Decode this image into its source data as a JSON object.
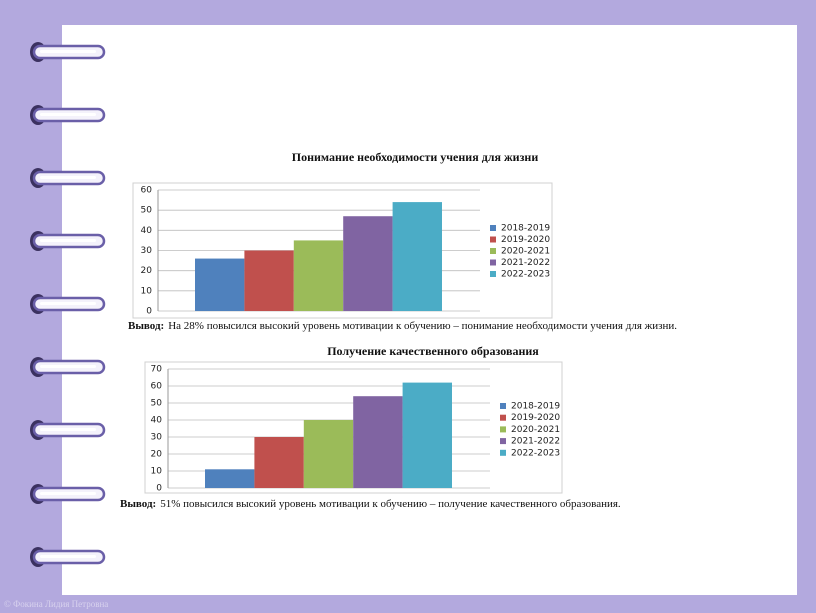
{
  "chart_data": [
    {
      "type": "bar",
      "title": "Понимание необходимости учения для жизни",
      "categories": [
        null
      ],
      "series": [
        {
          "name": "2018-2019",
          "color": "#4f81bd",
          "values": [
            26
          ]
        },
        {
          "name": "2019-2020",
          "color": "#c0504d",
          "values": [
            30
          ]
        },
        {
          "name": "2020-2021",
          "color": "#9bbb59",
          "values": [
            35
          ]
        },
        {
          "name": "2021-2022",
          "color": "#8064a2",
          "values": [
            47
          ]
        },
        {
          "name": "2022-2023",
          "color": "#4bacc6",
          "values": [
            54
          ]
        }
      ],
      "ylim": [
        0,
        60
      ],
      "yticks": [
        0,
        10,
        20,
        30,
        40,
        50,
        60
      ],
      "grid": true,
      "legend": "right",
      "conclusion_label": "Вывод:",
      "conclusion_text": "На 28%  повысился высокий уровень мотивации к обучению – понимание необходимости учения для жизни."
    },
    {
      "type": "bar",
      "title": "Получение качественного образования",
      "categories": [
        null
      ],
      "series": [
        {
          "name": "2018-2019",
          "color": "#4f81bd",
          "values": [
            11
          ]
        },
        {
          "name": "2019-2020",
          "color": "#c0504d",
          "values": [
            30
          ]
        },
        {
          "name": "2020-2021",
          "color": "#9bbb59",
          "values": [
            40
          ]
        },
        {
          "name": "2021-2022",
          "color": "#8064a2",
          "values": [
            54
          ]
        },
        {
          "name": "2022-2023",
          "color": "#4bacc6",
          "values": [
            62
          ]
        }
      ],
      "ylim": [
        0,
        70
      ],
      "yticks": [
        0,
        10,
        20,
        30,
        40,
        50,
        60,
        70
      ],
      "grid": true,
      "legend": "right",
      "conclusion_label": "Вывод:",
      "conclusion_text": "51%  повысился высокий уровень мотивации к обучению – получение качественного образования."
    }
  ],
  "footer": "© Фокина Лидия Петровна"
}
